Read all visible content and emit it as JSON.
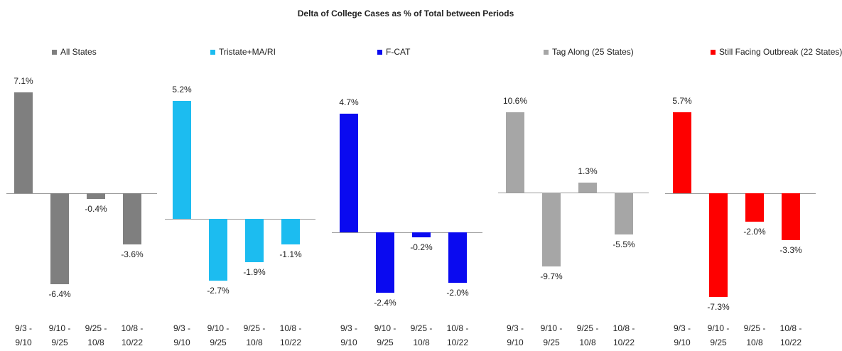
{
  "title": "Delta of College Cases as % of Total between Periods",
  "chart_data": [
    {
      "type": "bar",
      "name": "All States",
      "color": "#7f7f7f",
      "categories": [
        "9/3 - 9/10",
        "9/10 - 9/25",
        "9/25 - 10/8",
        "10/8 - 10/22"
      ],
      "values": [
        7.1,
        -6.4,
        -0.4,
        -3.6
      ],
      "value_labels": [
        "7.1%",
        "-6.4%",
        "-0.4%",
        "-3.6%"
      ],
      "ylim": [
        -7.9,
        8.1
      ]
    },
    {
      "type": "bar",
      "name": "Tristate+MA/RI",
      "color": "#1cbcf0",
      "categories": [
        "9/3 - 9/10",
        "9/10 - 9/25",
        "9/25 - 10/8",
        "10/8 - 10/22"
      ],
      "values": [
        5.2,
        -2.7,
        -1.9,
        -1.1
      ],
      "value_labels": [
        "5.2%",
        "-2.7%",
        "-1.9%",
        "-1.1%"
      ],
      "ylim": [
        -3.8,
        6.2
      ]
    },
    {
      "type": "bar",
      "name": "F-CAT",
      "color": "#0a0af0",
      "categories": [
        "9/3 - 9/10",
        "9/10 - 9/25",
        "9/25 - 10/8",
        "10/8 - 10/22"
      ],
      "values": [
        4.7,
        -2.4,
        -0.2,
        -2.0
      ],
      "value_labels": [
        "4.7%",
        "-2.4%",
        "-0.2%",
        "-2.0%"
      ],
      "ylim": [
        -2.9,
        6.1
      ]
    },
    {
      "type": "bar",
      "name": "Tag Along (25 States)",
      "color": "#a6a6a6",
      "categories": [
        "9/3 - 9/10",
        "9/10 - 9/25",
        "9/25 - 10/8",
        "10/8 - 10/22"
      ],
      "values": [
        10.6,
        -9.7,
        1.3,
        -5.5
      ],
      "value_labels": [
        "10.6%",
        "-9.7%",
        "1.3%",
        "-5.5%"
      ],
      "ylim": [
        -14.9,
        15.1
      ]
    },
    {
      "type": "bar",
      "name": "Still Facing Outbreak (22 States)",
      "color": "#fe0000",
      "categories": [
        "9/3 - 9/10",
        "9/10 - 9/25",
        "9/25 - 10/8",
        "10/8 - 10/22"
      ],
      "values": [
        5.7,
        -7.3,
        -2.0,
        -3.3
      ],
      "value_labels": [
        "5.7%",
        "-7.3%",
        "-2.0%",
        "-3.3%"
      ],
      "ylim": [
        -7.9,
        8.1
      ]
    }
  ]
}
